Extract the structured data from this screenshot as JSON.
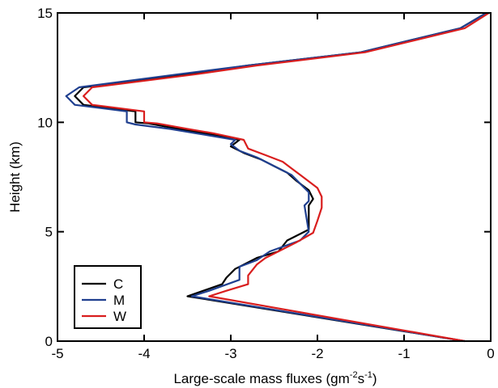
{
  "chart_data": {
    "type": "line",
    "xlabel": "Large-scale mass fluxes (gm",
    "xlabel_sup1": "-2",
    "xlabel_mid": "s",
    "xlabel_sup2": "-1",
    "xlabel_end": ")",
    "ylabel": "Height (km)",
    "xlim": [
      -5,
      0
    ],
    "ylim": [
      0,
      15
    ],
    "xticks": [
      -5,
      -4,
      -3,
      -2,
      -1,
      0
    ],
    "xtick_labels": [
      "-5",
      "-4",
      "-3",
      "-2",
      "-1",
      "0"
    ],
    "yticks": [
      0,
      5,
      10,
      15
    ],
    "ytick_labels": [
      "0",
      "5",
      "10",
      "15"
    ],
    "grid": false,
    "legend_position": "bottom-left",
    "series": [
      {
        "name": "C",
        "color": "#000000",
        "points": [
          [
            -0.3,
            0.0
          ],
          [
            -3.5,
            2.05
          ],
          [
            -3.1,
            2.6
          ],
          [
            -3.05,
            2.9
          ],
          [
            -2.95,
            3.3
          ],
          [
            -2.8,
            3.6
          ],
          [
            -2.7,
            3.8
          ],
          [
            -2.45,
            4.1
          ],
          [
            -2.35,
            4.6
          ],
          [
            -2.1,
            5.1
          ],
          [
            -2.1,
            6.2
          ],
          [
            -2.05,
            6.5
          ],
          [
            -2.1,
            6.9
          ],
          [
            -2.25,
            7.35
          ],
          [
            -2.35,
            7.7
          ],
          [
            -2.5,
            8.0
          ],
          [
            -2.65,
            8.3
          ],
          [
            -2.85,
            8.6
          ],
          [
            -3.0,
            8.9
          ],
          [
            -2.9,
            9.2
          ],
          [
            -3.3,
            9.5
          ],
          [
            -3.6,
            9.7
          ],
          [
            -3.95,
            9.95
          ],
          [
            -4.1,
            10.0
          ],
          [
            -4.1,
            10.5
          ],
          [
            -4.7,
            10.8
          ],
          [
            -4.8,
            11.2
          ],
          [
            -4.7,
            11.6
          ],
          [
            -3.5,
            12.2
          ],
          [
            -2.8,
            12.6
          ],
          [
            -1.5,
            13.2
          ],
          [
            -0.35,
            14.3
          ],
          [
            -0.05,
            15.0
          ]
        ]
      },
      {
        "name": "M",
        "color": "#1f3f8f",
        "points": [
          [
            -0.3,
            0.0
          ],
          [
            -3.45,
            2.05
          ],
          [
            -3.25,
            2.3
          ],
          [
            -2.9,
            2.8
          ],
          [
            -2.9,
            3.4
          ],
          [
            -2.7,
            3.7
          ],
          [
            -2.55,
            4.1
          ],
          [
            -2.2,
            4.6
          ],
          [
            -2.1,
            5.0
          ],
          [
            -2.15,
            6.2
          ],
          [
            -2.1,
            6.4
          ],
          [
            -2.1,
            6.8
          ],
          [
            -2.2,
            7.2
          ],
          [
            -2.3,
            7.6
          ],
          [
            -2.5,
            8.0
          ],
          [
            -2.7,
            8.4
          ],
          [
            -2.9,
            8.7
          ],
          [
            -3.0,
            9.0
          ],
          [
            -2.95,
            9.2
          ],
          [
            -3.4,
            9.5
          ],
          [
            -3.7,
            9.7
          ],
          [
            -4.1,
            9.9
          ],
          [
            -4.2,
            10.0
          ],
          [
            -4.2,
            10.5
          ],
          [
            -4.8,
            10.8
          ],
          [
            -4.9,
            11.2
          ],
          [
            -4.75,
            11.6
          ],
          [
            -3.6,
            12.2
          ],
          [
            -2.8,
            12.6
          ],
          [
            -1.5,
            13.2
          ],
          [
            -0.35,
            14.3
          ],
          [
            -0.05,
            15.0
          ]
        ]
      },
      {
        "name": "W",
        "color": "#d91e1e",
        "points": [
          [
            -0.3,
            0.0
          ],
          [
            -3.25,
            2.05
          ],
          [
            -3.05,
            2.3
          ],
          [
            -2.8,
            2.6
          ],
          [
            -2.8,
            3.0
          ],
          [
            -2.7,
            3.5
          ],
          [
            -2.6,
            3.8
          ],
          [
            -2.45,
            4.1
          ],
          [
            -2.25,
            4.5
          ],
          [
            -2.05,
            4.95
          ],
          [
            -2.0,
            5.5
          ],
          [
            -1.95,
            6.1
          ],
          [
            -1.95,
            6.6
          ],
          [
            -2.0,
            7.0
          ],
          [
            -2.1,
            7.3
          ],
          [
            -2.2,
            7.6
          ],
          [
            -2.3,
            7.9
          ],
          [
            -2.4,
            8.2
          ],
          [
            -2.6,
            8.5
          ],
          [
            -2.8,
            8.8
          ],
          [
            -2.85,
            9.2
          ],
          [
            -3.2,
            9.5
          ],
          [
            -3.5,
            9.7
          ],
          [
            -3.85,
            9.95
          ],
          [
            -4.0,
            10.0
          ],
          [
            -4.0,
            10.5
          ],
          [
            -4.6,
            10.8
          ],
          [
            -4.7,
            11.2
          ],
          [
            -4.6,
            11.6
          ],
          [
            -3.4,
            12.2
          ],
          [
            -2.7,
            12.6
          ],
          [
            -1.45,
            13.2
          ],
          [
            -0.3,
            14.3
          ],
          [
            -0.02,
            15.0
          ]
        ]
      }
    ]
  }
}
